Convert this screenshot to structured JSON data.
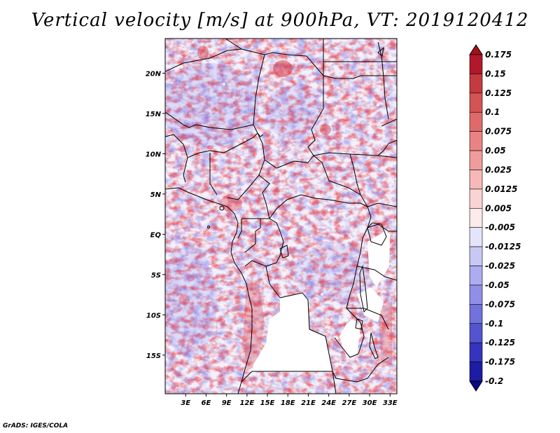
{
  "title": "Vertical velocity [m/s] at 900hPa, VT: 2019120412",
  "credit": "GrADS: IGES/COLA",
  "map": {
    "lat_range": [
      -19.8,
      24.3
    ],
    "lon_range": [
      0,
      34
    ],
    "lat_labels": [
      {
        "lat": 20,
        "text": "20N"
      },
      {
        "lat": 15,
        "text": "15N"
      },
      {
        "lat": 10,
        "text": "10N"
      },
      {
        "lat": 5,
        "text": "5N"
      },
      {
        "lat": 0,
        "text": "EQ"
      },
      {
        "lat": -5,
        "text": "5S"
      },
      {
        "lat": -10,
        "text": "10S"
      },
      {
        "lat": -15,
        "text": "15S"
      }
    ],
    "lon_labels": [
      {
        "lon": 3,
        "text": "3E"
      },
      {
        "lon": 6,
        "text": "6E"
      },
      {
        "lon": 9,
        "text": "9E"
      },
      {
        "lon": 12,
        "text": "12E"
      },
      {
        "lon": 15,
        "text": "15E"
      },
      {
        "lon": 18,
        "text": "18E"
      },
      {
        "lon": 21,
        "text": "21E"
      },
      {
        "lon": 24,
        "text": "24E"
      },
      {
        "lon": 27,
        "text": "27E"
      },
      {
        "lon": 30,
        "text": "30E"
      },
      {
        "lon": 33,
        "text": "33E"
      }
    ]
  },
  "colorbar": {
    "levels": [
      {
        "label": "0.175",
        "color": "#b2182b"
      },
      {
        "label": "0.15",
        "color": "#c43a3f"
      },
      {
        "label": "0.125",
        "color": "#d45353"
      },
      {
        "label": "0.1",
        "color": "#e06a6a"
      },
      {
        "label": "0.075",
        "color": "#e98383"
      },
      {
        "label": "0.05",
        "color": "#f09c9c"
      },
      {
        "label": "0.025",
        "color": "#f6b8b8"
      },
      {
        "label": "0.0125",
        "color": "#fad3d3"
      },
      {
        "label": "0.005",
        "color": "#fdeaea"
      },
      {
        "label": "-0.005",
        "color": "#ffffff"
      },
      {
        "label": "-0.0125",
        "color": "#e4e4fb"
      },
      {
        "label": "-0.025",
        "color": "#c8c8f6"
      },
      {
        "label": "-0.05",
        "color": "#acacf0"
      },
      {
        "label": "-0.075",
        "color": "#8f8fe8"
      },
      {
        "label": "-0.1",
        "color": "#7272dd"
      },
      {
        "label": "-0.125",
        "color": "#5454cf"
      },
      {
        "label": "-0.175",
        "color": "#3434be"
      },
      {
        "label": "-0.2",
        "color": "#1c1ca4"
      }
    ],
    "top_arrow_color": "#a50f15",
    "bottom_arrow_color": "#0a0a85"
  },
  "colors": {
    "positive": "#e8404a",
    "negative": "#6a6ae6",
    "border": "#000000",
    "no_data": "#ffffff"
  }
}
